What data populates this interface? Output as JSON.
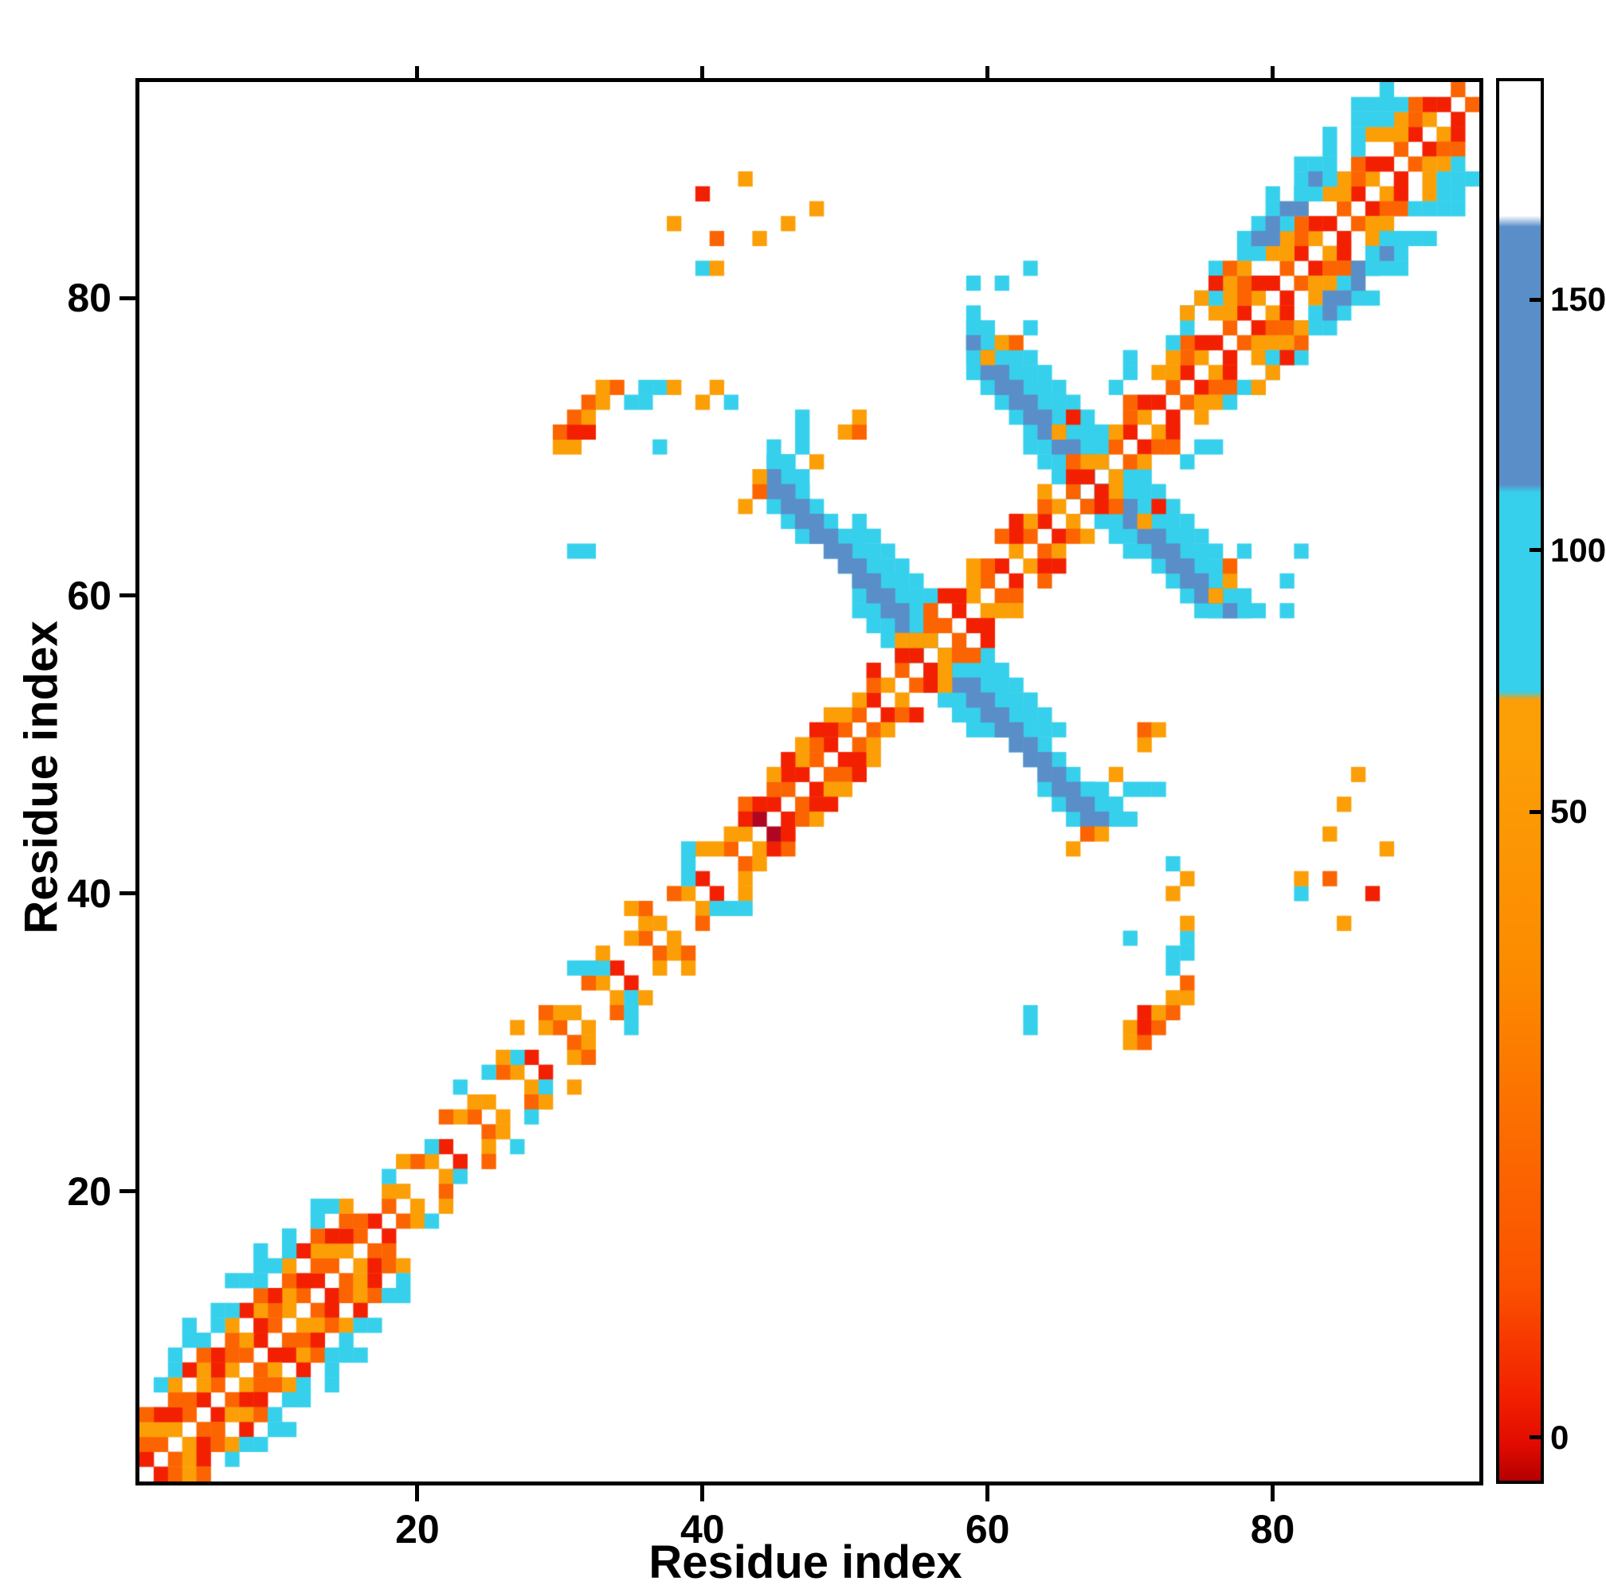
{
  "figure": {
    "background": "#ffffff"
  },
  "chart_data": {
    "type": "heatmap",
    "title": "",
    "xlabel": "Residue index",
    "ylabel": "Residue index",
    "n": 94,
    "x_range": [
      0.5,
      94.5
    ],
    "y_range": [
      0.5,
      94.5
    ],
    "x_ticks": [
      20,
      40,
      60,
      80
    ],
    "y_ticks": [
      20,
      40,
      60,
      80
    ],
    "symmetric": true,
    "grid": false,
    "legend": "colorbar-right",
    "palette": {
      "darkred": "#b00622",
      "red": "#f22000",
      "orangered": "#fb6400",
      "orange": "#fc9e06",
      "cyan": "#36d0ec",
      "blue": "#5a8ec8"
    },
    "palette_values": {
      "darkred": 0,
      "red": 10,
      "orangered": 35,
      "orange": 55,
      "cyan": 100,
      "blue": 140
    },
    "colorbar": {
      "gradient_stops": [
        "#b40000 0%",
        "#e00b00 2.5%",
        "#f22000 6%",
        "#fb5200 14%",
        "#fb6400 22%",
        "#fc8a00 36%",
        "#fc9e06 52%",
        "#fc9e06 55.8%",
        "#36d0ec 56.4%",
        "#36d0ec 70.6%",
        "#5a8ec8 71.2%",
        "#5a8ec8 89.6%",
        "#ffffff 90.4%",
        "#ffffff 100%"
      ],
      "ticks": [
        {
          "label": "150",
          "pos": 0.156
        },
        {
          "label": "100",
          "pos": 0.335
        },
        {
          "label": "50",
          "pos": 0.522
        },
        {
          "label": "0",
          "pos": 0.969
        }
      ]
    },
    "antidiag_segments": [
      {
        "sum": 113,
        "from": 51,
        "to": 56,
        "hw": 3,
        "color": "cyan"
      },
      {
        "sum": 113,
        "from": 45,
        "to": 47,
        "hw": 2,
        "color": "cyan"
      },
      {
        "sum": 113,
        "from": 45,
        "to": 56,
        "hw": 1,
        "color": "cyan"
      },
      {
        "sum": 136,
        "from": 63,
        "to": 68,
        "hw": 3,
        "color": "cyan"
      },
      {
        "sum": 136,
        "from": 59,
        "to": 62,
        "hw": 2,
        "color": "cyan"
      },
      {
        "sum": 136,
        "from": 59,
        "to": 68,
        "hw": 1,
        "color": "cyan"
      },
      {
        "sum": 112,
        "from": 45,
        "to": 55,
        "hw": 0,
        "color": "blue"
      },
      {
        "sum": 113,
        "from": 45,
        "to": 54,
        "hw": 0,
        "color": "blue"
      },
      {
        "sum": 135,
        "from": 60,
        "to": 67,
        "hw": 0,
        "color": "blue"
      },
      {
        "sum": 136,
        "from": 59,
        "to": 67,
        "hw": 0,
        "color": "blue"
      }
    ],
    "diag_segments": [
      {
        "d": 1,
        "from": 1,
        "to": 17,
        "pattern": [
          "red",
          "orangered",
          "orange",
          "orangered"
        ]
      },
      {
        "d": 2,
        "from": 1,
        "to": 16,
        "pattern": [
          "orangered",
          "orange",
          "red"
        ]
      },
      {
        "d": 3,
        "from": 1,
        "to": 16,
        "pattern": [
          "orange",
          "red",
          "orangered",
          null
        ]
      },
      {
        "d": 4,
        "from": 1,
        "to": 15,
        "pattern": [
          "orangered",
          null,
          "orange",
          "red"
        ]
      },
      {
        "d": 5,
        "from": 2,
        "to": 14,
        "pattern": [
          "cyan",
          "cyan",
          null,
          "cyan"
        ]
      },
      {
        "d": 6,
        "from": 2,
        "to": 13,
        "pattern": [
          null,
          "cyan",
          "cyan",
          null,
          "cyan"
        ]
      },
      {
        "d": 7,
        "from": 4,
        "to": 11,
        "pattern": [
          "cyan",
          null,
          null,
          "cyan",
          null
        ]
      },
      {
        "d": 1,
        "from": 18,
        "to": 44,
        "pattern": [
          "orangered",
          "orange",
          null,
          "orange",
          "red",
          null
        ]
      },
      {
        "d": 2,
        "from": 18,
        "to": 44,
        "pattern": [
          "orange",
          null,
          "orangered",
          "cyan",
          null,
          "orange"
        ]
      },
      {
        "d": 3,
        "from": 18,
        "to": 43,
        "pattern": [
          "cyan",
          "orange",
          null,
          null,
          "orangered",
          null,
          null
        ]
      },
      {
        "d": 4,
        "from": 21,
        "to": 42,
        "pattern": [
          null,
          null,
          "cyan",
          null,
          null,
          null,
          "orange",
          null
        ]
      },
      {
        "d": 1,
        "from": 45,
        "to": 50,
        "pattern": [
          "red",
          "orangered"
        ]
      },
      {
        "d": 2,
        "from": 45,
        "to": 50,
        "pattern": [
          "orangered",
          "red",
          "orange"
        ]
      },
      {
        "d": 3,
        "from": 45,
        "to": 49,
        "pattern": [
          "orange",
          "red"
        ]
      },
      {
        "d": 1,
        "from": 51,
        "to": 68,
        "pattern": [
          "orangered",
          "red",
          "orange"
        ]
      },
      {
        "d": 2,
        "from": 51,
        "to": 67,
        "pattern": [
          "orange",
          "orangered",
          null,
          "red"
        ]
      },
      {
        "d": 3,
        "from": 52,
        "to": 66,
        "pattern": [
          "red",
          null,
          "orange",
          null,
          "orangered"
        ]
      },
      {
        "d": 1,
        "from": 69,
        "to": 93,
        "pattern": [
          "orangered",
          "red",
          "orange",
          "red"
        ]
      },
      {
        "d": 2,
        "from": 69,
        "to": 92,
        "pattern": [
          "orange",
          "orangered",
          "red",
          null
        ]
      },
      {
        "d": 3,
        "from": 70,
        "to": 91,
        "pattern": [
          "orangered",
          null,
          "orange",
          "orange"
        ]
      },
      {
        "d": 4,
        "from": 73,
        "to": 90,
        "pattern": [
          "cyan",
          "cyan",
          null,
          "cyan",
          "orange"
        ]
      },
      {
        "d": 5,
        "from": 74,
        "to": 89,
        "pattern": [
          "cyan",
          "cyan",
          "cyan",
          null
        ]
      },
      {
        "d": 6,
        "from": 76,
        "to": 88,
        "pattern": [
          "cyan",
          null,
          "cyan",
          "cyan"
        ]
      },
      {
        "d": 7,
        "from": 79,
        "to": 87,
        "pattern": [
          null,
          "cyan",
          null,
          "cyan"
        ]
      }
    ],
    "spots": [
      [
        30,
        70,
        "orange"
      ],
      [
        30,
        71,
        "orangered"
      ],
      [
        31,
        70,
        "orange"
      ],
      [
        31,
        71,
        "red"
      ],
      [
        31,
        72,
        "orangered"
      ],
      [
        32,
        71,
        "red"
      ],
      [
        32,
        72,
        "orange"
      ],
      [
        32,
        73,
        "orangered"
      ],
      [
        33,
        73,
        "orange"
      ],
      [
        33,
        74,
        "orange"
      ],
      [
        34,
        74,
        "orangered"
      ],
      [
        35,
        73,
        "cyan"
      ],
      [
        36,
        73,
        "cyan"
      ],
      [
        36,
        74,
        "cyan"
      ],
      [
        37,
        74,
        "cyan"
      ],
      [
        37,
        70,
        "cyan"
      ],
      [
        38,
        74,
        "orange"
      ],
      [
        40,
        73,
        "orange"
      ],
      [
        41,
        74,
        "orange"
      ],
      [
        42,
        73,
        "cyan"
      ],
      [
        31,
        63,
        "cyan"
      ],
      [
        32,
        63,
        "cyan"
      ],
      [
        40,
        87,
        "red"
      ],
      [
        43,
        88,
        "orange"
      ],
      [
        38,
        85,
        "orange"
      ],
      [
        41,
        84,
        "orangered"
      ],
      [
        44,
        84,
        "orange"
      ],
      [
        46,
        85,
        "orange"
      ],
      [
        48,
        86,
        "orange"
      ],
      [
        40,
        82,
        "cyan"
      ],
      [
        41,
        82,
        "orange"
      ],
      [
        43,
        66,
        "orange"
      ],
      [
        44,
        67,
        "orangered"
      ],
      [
        44,
        68,
        "orange"
      ],
      [
        46,
        69,
        "cyan"
      ],
      [
        47,
        70,
        "cyan"
      ],
      [
        47,
        71,
        "cyan"
      ],
      [
        47,
        72,
        "cyan"
      ],
      [
        48,
        69,
        "orange"
      ],
      [
        50,
        71,
        "orange"
      ],
      [
        51,
        71,
        "orangered"
      ],
      [
        51,
        72,
        "orange"
      ],
      [
        43,
        45,
        "red"
      ],
      [
        44,
        45,
        "darkred"
      ],
      [
        44,
        46,
        "red"
      ],
      [
        59,
        81,
        "cyan"
      ],
      [
        61,
        81,
        "cyan"
      ],
      [
        63,
        82,
        "cyan"
      ],
      [
        63,
        78,
        "cyan"
      ],
      [
        60,
        76,
        "orange"
      ],
      [
        61,
        77,
        "orange"
      ],
      [
        62,
        77,
        "orangered"
      ],
      [
        65,
        71,
        "orange"
      ],
      [
        66,
        72,
        "red"
      ],
      [
        69,
        74,
        "cyan"
      ],
      [
        70,
        75,
        "cyan"
      ],
      [
        70,
        76,
        "cyan"
      ],
      [
        74,
        79,
        "orange"
      ],
      [
        75,
        80,
        "orange"
      ],
      [
        76,
        81,
        "red"
      ],
      [
        77,
        82,
        "orangered"
      ],
      [
        78,
        82,
        "orange"
      ],
      [
        79,
        84,
        "blue"
      ],
      [
        80,
        84,
        "blue"
      ],
      [
        80,
        85,
        "blue"
      ],
      [
        81,
        86,
        "blue"
      ],
      [
        82,
        86,
        "blue"
      ],
      [
        83,
        88,
        "blue"
      ],
      [
        82,
        87,
        "cyan"
      ],
      [
        84,
        88,
        "cyan"
      ]
    ]
  }
}
